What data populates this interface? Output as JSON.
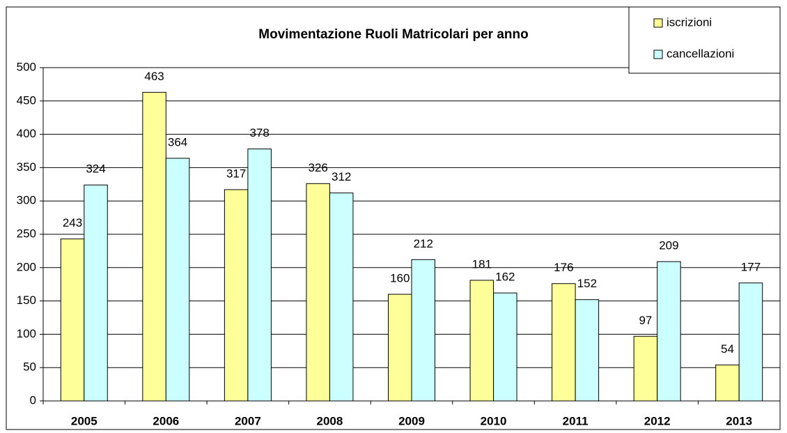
{
  "chart_data": {
    "type": "bar",
    "title": "Movimentazione Ruoli Matricolari per anno",
    "categories": [
      "2005",
      "2006",
      "2007",
      "2008",
      "2009",
      "2010",
      "2011",
      "2012",
      "2013"
    ],
    "series": [
      {
        "name": "iscrizioni",
        "color": "#ffff99",
        "values": [
          243,
          463,
          317,
          326,
          160,
          181,
          176,
          97,
          54
        ]
      },
      {
        "name": "cancellazioni",
        "color": "#ccffff",
        "values": [
          324,
          364,
          378,
          312,
          212,
          162,
          152,
          209,
          177
        ]
      }
    ],
    "ylim": [
      0,
      500
    ],
    "yticks": [
      0,
      50,
      100,
      150,
      200,
      250,
      300,
      350,
      400,
      450,
      500
    ],
    "grid": true,
    "legend": "upper right"
  }
}
